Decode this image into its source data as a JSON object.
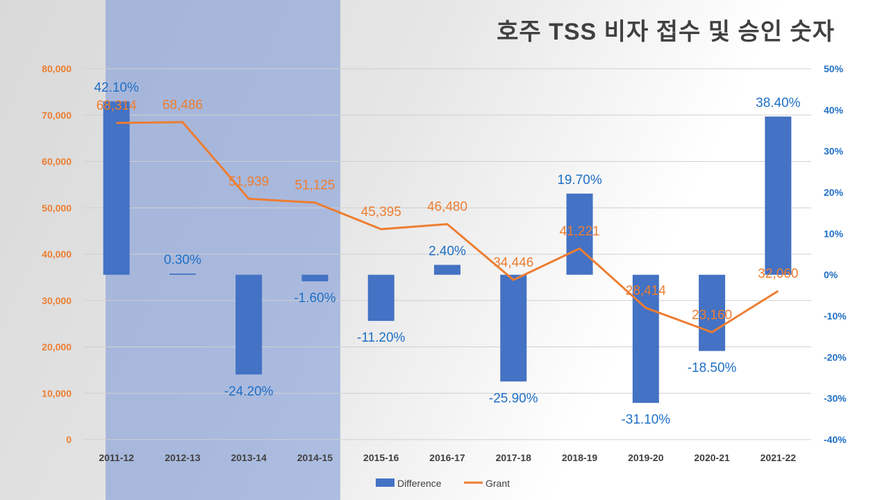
{
  "title": "호주 TSS 비자 접수 및 승인 숫자",
  "chart_data": {
    "type": "bar+line",
    "title": "호주 TSS 비자 접수 및 승인 숫자",
    "categories": [
      "2011-12",
      "2012-13",
      "2013-14",
      "2014-15",
      "2015-16",
      "2016-17",
      "2017-18",
      "2018-19",
      "2019-20",
      "2020-21",
      "2021-22"
    ],
    "series": [
      {
        "name": "Difference",
        "type": "bar",
        "axis": "right",
        "color": "#4472C4",
        "values": [
          42.1,
          0.3,
          -24.2,
          -1.6,
          -11.2,
          2.4,
          -25.9,
          19.7,
          -31.1,
          -18.5,
          38.4
        ],
        "labels": [
          "42.10%",
          "0.30%",
          "-24.20%",
          "-1.60%",
          "-11.20%",
          "2.40%",
          "-25.90%",
          "19.70%",
          "-31.10%",
          "-18.50%",
          "38.40%"
        ]
      },
      {
        "name": "Grant",
        "type": "line",
        "axis": "left",
        "color": "#ED7D31",
        "values": [
          68314,
          68486,
          51939,
          51125,
          45395,
          46480,
          34446,
          41221,
          28414,
          23160,
          32060
        ],
        "labels": [
          "68,314",
          "68,486",
          "51,939",
          "51,125",
          "45,395",
          "46,480",
          "34,446",
          "41,221",
          "28,414",
          "23,160",
          "32,060"
        ]
      }
    ],
    "left_axis": {
      "range": [
        0,
        80000
      ],
      "ticks": [
        "0",
        "10,000",
        "20,000",
        "30,000",
        "40,000",
        "50,000",
        "60,000",
        "70,000",
        "80,000"
      ],
      "color": "#ED7D31"
    },
    "right_axis": {
      "range": [
        -40,
        50
      ],
      "ticks": [
        "-40%",
        "-30%",
        "-20%",
        "-10%",
        "0%",
        "10%",
        "20%",
        "30%",
        "40%",
        "50%"
      ],
      "color": "#1F6FC5"
    },
    "grid": true,
    "legend": "bottom"
  }
}
